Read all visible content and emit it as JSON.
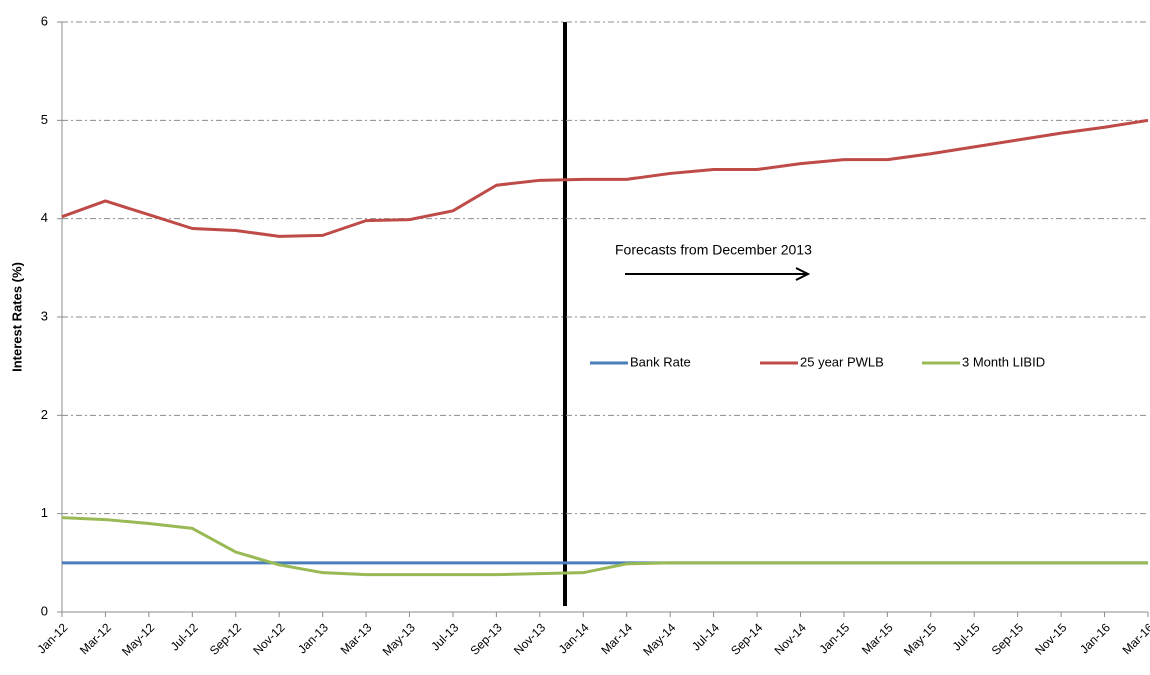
{
  "chart_data": {
    "type": "line",
    "y_label": "Interest Rates (%)",
    "annotation": "Forecasts from December 2013",
    "categories": [
      "Jan-12",
      "Mar-12",
      "May-12",
      "Jul-12",
      "Sep-12",
      "Nov-12",
      "Jan-13",
      "Mar-13",
      "May-13",
      "Jul-13",
      "Sep-13",
      "Nov-13",
      "Jan-14",
      "Mar-14",
      "May-14",
      "Jul-14",
      "Sep-14",
      "Nov-14",
      "Jan-15",
      "Mar-15",
      "May-15",
      "Jul-15",
      "Sep-15",
      "Nov-15",
      "Jan-16",
      "Mar-16"
    ],
    "series": [
      {
        "name": "Bank Rate",
        "color": "#4a7ebb",
        "values": [
          0.5,
          0.5,
          0.5,
          0.5,
          0.5,
          0.5,
          0.5,
          0.5,
          0.5,
          0.5,
          0.5,
          0.5,
          0.5,
          0.5,
          0.5,
          0.5,
          0.5,
          0.5,
          0.5,
          0.5,
          0.5,
          0.5,
          0.5,
          0.5,
          0.5,
          0.5
        ]
      },
      {
        "name": "25 year PWLB",
        "color": "#be4b48",
        "values": [
          4.02,
          4.18,
          4.04,
          3.9,
          3.88,
          3.82,
          3.83,
          3.98,
          3.99,
          4.08,
          4.34,
          4.39,
          4.4,
          4.4,
          4.46,
          4.5,
          4.5,
          4.56,
          4.6,
          4.6,
          4.66,
          4.73,
          4.8,
          4.87,
          4.93,
          5.0
        ]
      },
      {
        "name": "3 Month  LIBID",
        "color": "#98b954",
        "values": [
          0.96,
          0.94,
          0.9,
          0.85,
          0.61,
          0.48,
          0.4,
          0.38,
          0.38,
          0.38,
          0.38,
          0.39,
          0.4,
          0.49,
          0.5,
          0.5,
          0.5,
          0.5,
          0.5,
          0.5,
          0.5,
          0.5,
          0.5,
          0.5,
          0.5,
          0.5
        ]
      }
    ],
    "ylim": [
      0,
      6
    ],
    "yticks": [
      0,
      1,
      2,
      3,
      4,
      5,
      6
    ],
    "grid": true
  }
}
